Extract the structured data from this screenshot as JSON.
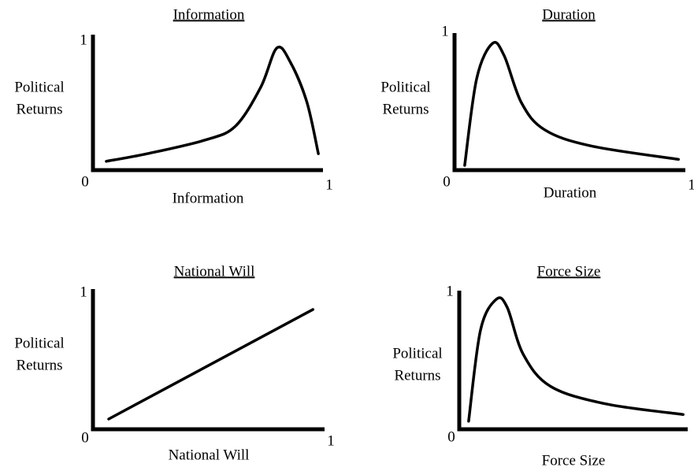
{
  "chart_data": [
    {
      "type": "line",
      "title": "Information",
      "xlabel": "Information",
      "ylabel": [
        "Political",
        "Returns"
      ],
      "xlim": [
        0,
        1
      ],
      "ylim": [
        0,
        1
      ],
      "xticks": [
        0,
        1
      ],
      "yticks": [
        1
      ],
      "color": "#000000",
      "x": [
        0.058,
        0.235,
        0.49,
        0.62,
        0.73,
        0.8,
        0.86,
        0.93,
        0.98
      ],
      "series": [
        {
          "values": [
            0.07,
            0.13,
            0.24,
            0.35,
            0.66,
            0.97,
            0.85,
            0.54,
            0.13
          ]
        }
      ]
    },
    {
      "type": "line",
      "title": "Duration",
      "xlabel": "Duration",
      "ylabel": [
        "Political",
        "Returns"
      ],
      "xlim": [
        0,
        1
      ],
      "ylim": [
        0,
        1
      ],
      "xticks": [
        0,
        1
      ],
      "yticks": [
        1
      ],
      "color": "#000000",
      "x": [
        0.044,
        0.096,
        0.164,
        0.215,
        0.29,
        0.39,
        0.59,
        0.97
      ],
      "series": [
        {
          "values": [
            0.035,
            0.68,
            0.94,
            0.85,
            0.5,
            0.3,
            0.18,
            0.08
          ]
        }
      ]
    },
    {
      "type": "line",
      "title": "National  Will",
      "xlabel": "National  Will",
      "ylabel": [
        "Political",
        "Returns"
      ],
      "xlim": [
        0,
        1
      ],
      "ylim": [
        0,
        1
      ],
      "xticks": [
        0,
        1
      ],
      "yticks": [
        1
      ],
      "color": "#000000",
      "x": [
        0.068,
        0.95
      ],
      "series": [
        {
          "values": [
            0.077,
            0.9
          ]
        }
      ]
    },
    {
      "type": "line",
      "title": "Force Size",
      "xlabel": "Force Size",
      "ylabel": [
        "Political",
        "Returns"
      ],
      "xlim": [
        0,
        1
      ],
      "ylim": [
        0,
        1
      ],
      "xticks": [
        0
      ],
      "yticks": [
        1
      ],
      "color": "#000000",
      "x": [
        0.041,
        0.093,
        0.162,
        0.21,
        0.28,
        0.4,
        0.64,
        0.98
      ],
      "series": [
        {
          "values": [
            0.06,
            0.74,
            0.97,
            0.91,
            0.56,
            0.32,
            0.19,
            0.11
          ]
        }
      ]
    }
  ]
}
